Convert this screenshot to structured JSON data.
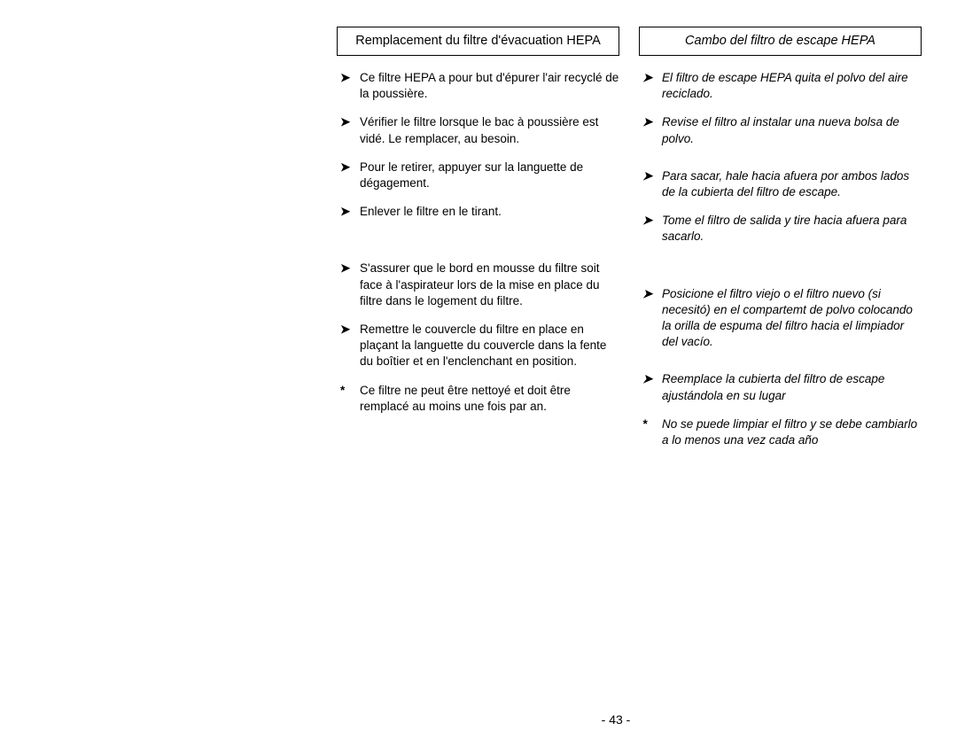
{
  "left": {
    "title": "Remplacement du filtre d'évacuation HEPA",
    "items": [
      {
        "bullet": "➤",
        "text": "Ce filtre HEPA a pour but d'épurer l'air recyclé de la poussière."
      },
      {
        "bullet": "➤",
        "text": "Vérifier le filtre lorsque le bac à poussière est vidé. Le remplacer, au besoin."
      },
      {
        "bullet": "➤",
        "text": "Pour le retirer, appuyer sur la languette de dégagement."
      },
      {
        "bullet": "➤",
        "text": "Enlever le filtre en le tirant."
      },
      {
        "bullet": "➤",
        "text": "S'assurer que le bord en mousse du filtre soit face à l'aspirateur lors de la mise en place du filtre dans le logement du filtre.",
        "gap": "lg"
      },
      {
        "bullet": "➤",
        "text": "Remettre le couvercle du filtre en place en plaçant la languette du couvercle dans la fente du boîtier et en l'enclenchant en position."
      },
      {
        "bullet": "*",
        "text": "Ce filtre ne peut être nettoyé et doit être remplacé au moins une fois par an."
      }
    ]
  },
  "right": {
    "title": "Cambo del filtro de escape HEPA",
    "items": [
      {
        "bullet": "➤",
        "text": "El filtro de escape HEPA quita el polvo del aire reciclado."
      },
      {
        "bullet": "➤",
        "text": "Revise el filtro al instalar una nueva bolsa de polvo."
      },
      {
        "bullet": "➤",
        "text": "Para sacar, hale hacia afuera por ambos lados de la cubierta del filtro de escape.",
        "gap": "md"
      },
      {
        "bullet": "➤",
        "text": "Tome el filtro de salida y tire hacia afuera para sacarlo."
      },
      {
        "bullet": "➤",
        "text": "Posicione el filtro viejo o el filtro nuevo (si necesitó) en el compartemt de polvo colocando la orilla de espuma del filtro hacia el limpiador del vacío.",
        "gap": "lg"
      },
      {
        "bullet": "➤",
        "text": "Reemplace la cubierta del filtro de escape ajustándola en su lugar",
        "gap": "md"
      },
      {
        "bullet": "*",
        "text": "No se puede limpiar el filtro y se debe cambiarlo a lo menos una vez cada año"
      }
    ]
  },
  "page_number": "- 43 -"
}
